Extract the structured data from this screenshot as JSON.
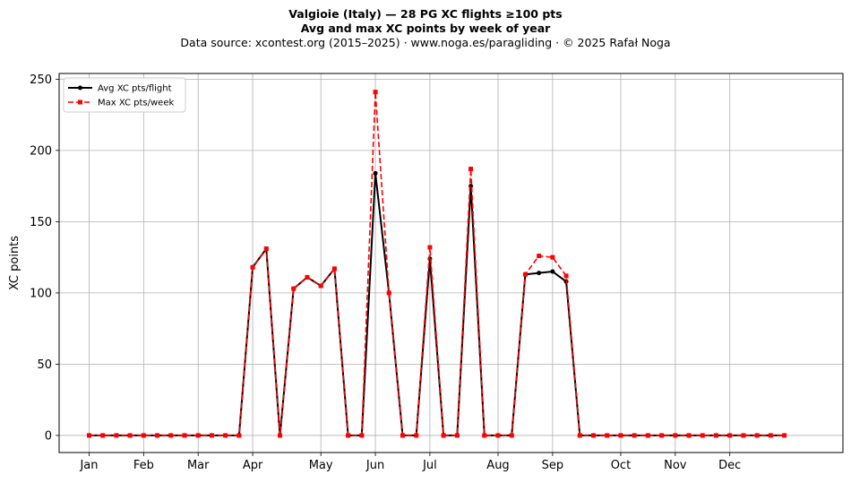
{
  "chart_data": {
    "type": "line",
    "title_line1": "Valgioie (Italy)  —  28 PG XC flights ≥100 pts",
    "title_line2": "Avg and max XC points by week of year",
    "subtitle": "Data source: xcontest.org (2015–2025)  ·  www.noga.es/paragliding  ·  © 2025 Rafał Noga",
    "ylabel": "XC points",
    "xlabel": "",
    "x_unit": "week of year",
    "x": [
      1,
      2,
      3,
      4,
      5,
      6,
      7,
      8,
      9,
      10,
      11,
      12,
      13,
      14,
      15,
      16,
      17,
      18,
      19,
      20,
      21,
      22,
      23,
      24,
      25,
      26,
      27,
      28,
      29,
      30,
      31,
      32,
      33,
      34,
      35,
      36,
      37,
      38,
      39,
      40,
      41,
      42,
      43,
      44,
      45,
      46,
      47,
      48,
      49,
      50,
      51,
      52
    ],
    "xlim": [
      -1.2,
      56.3
    ],
    "ylim": [
      -12,
      254
    ],
    "month_ticks": [
      {
        "label": "Jan",
        "week": 1
      },
      {
        "label": "Feb",
        "week": 5
      },
      {
        "label": "Mar",
        "week": 9
      },
      {
        "label": "Apr",
        "week": 13
      },
      {
        "label": "May",
        "week": 18
      },
      {
        "label": "Jun",
        "week": 22
      },
      {
        "label": "Jul",
        "week": 26
      },
      {
        "label": "Aug",
        "week": 31
      },
      {
        "label": "Sep",
        "week": 35
      },
      {
        "label": "Oct",
        "week": 40
      },
      {
        "label": "Nov",
        "week": 44
      },
      {
        "label": "Dec",
        "week": 48
      }
    ],
    "y_ticks": [
      0,
      50,
      100,
      150,
      200,
      250
    ],
    "grid": true,
    "legend_position": "top-left",
    "series": [
      {
        "name": "Avg XC pts/flight",
        "color": "#000000",
        "style": "solid",
        "marker": "circle",
        "values": [
          0,
          0,
          0,
          0,
          0,
          0,
          0,
          0,
          0,
          0,
          0,
          0,
          118,
          131,
          0,
          103,
          111,
          105,
          117,
          0,
          0,
          184,
          100,
          0,
          0,
          124,
          0,
          0,
          175,
          0,
          0,
          0,
          113,
          114,
          115,
          108,
          0,
          0,
          0,
          0,
          0,
          0,
          0,
          0,
          0,
          0,
          0,
          0,
          0,
          0,
          0,
          0
        ]
      },
      {
        "name": "Max XC pts/week",
        "color": "#ff0000",
        "style": "dashed",
        "marker": "square",
        "values": [
          0,
          0,
          0,
          0,
          0,
          0,
          0,
          0,
          0,
          0,
          0,
          0,
          118,
          131,
          0,
          103,
          111,
          105,
          117,
          0,
          0,
          241,
          100,
          0,
          0,
          132,
          0,
          0,
          187,
          0,
          0,
          0,
          113,
          126,
          125,
          112,
          0,
          0,
          0,
          0,
          0,
          0,
          0,
          0,
          0,
          0,
          0,
          0,
          0,
          0,
          0,
          0
        ]
      }
    ]
  }
}
